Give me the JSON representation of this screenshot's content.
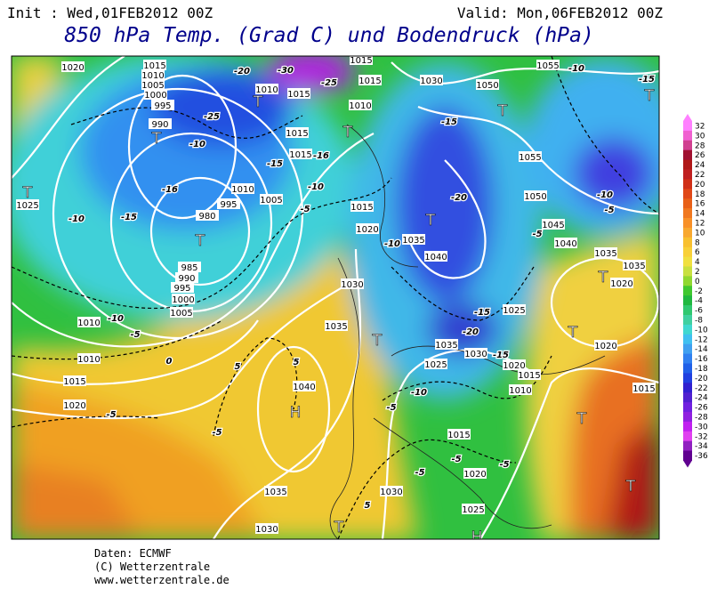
{
  "header": {
    "init": "Init : Wed,01FEB2012 00Z",
    "valid": "Valid: Mon,06FEB2012 00Z",
    "title": "850 hPa Temp. (Grad C) und Bodendruck (hPa)"
  },
  "colorbar": {
    "labels": [
      32,
      30,
      28,
      26,
      24,
      22,
      20,
      18,
      16,
      14,
      12,
      10,
      8,
      6,
      4,
      2,
      0,
      -2,
      -4,
      -6,
      -8,
      -10,
      -12,
      -14,
      -16,
      -18,
      -20,
      -22,
      -24,
      -26,
      -28,
      -30,
      -32,
      -34,
      -36
    ],
    "colors": [
      "#ff80ff",
      "#f060d0",
      "#d04090",
      "#a01030",
      "#b01818",
      "#c02020",
      "#d03018",
      "#e04818",
      "#e86018",
      "#f07820",
      "#f89028",
      "#f8a830",
      "#f8c030",
      "#f8d038",
      "#f0e040",
      "#c8e040",
      "#90d830",
      "#40c830",
      "#20b840",
      "#30c870",
      "#40d0a0",
      "#40d8d0",
      "#40c0f0",
      "#40a0f0",
      "#3080f0",
      "#2060e8",
      "#2040e0",
      "#3020d0",
      "#5020d0",
      "#7020e0",
      "#9020e0",
      "#c020f0",
      "#e040f0",
      "#9020c0",
      "#600090"
    ]
  },
  "map": {
    "isobar_labels": [
      "1020",
      "1015",
      "1010",
      "1005",
      "1000",
      "995",
      "990",
      "1010",
      "1015",
      "1015",
      "1015",
      "1010",
      "1015",
      "1015",
      "1005",
      "1010",
      "995",
      "980",
      "985",
      "990",
      "995",
      "1000",
      "1005",
      "1010",
      "1010",
      "1015",
      "1020",
      "1025",
      "1020",
      "1015",
      "1030",
      "1035",
      "1040",
      "1035",
      "1030",
      "1030",
      "1025",
      "1020",
      "1015",
      "1025",
      "1035",
      "1030",
      "1020",
      "1015",
      "1010",
      "1025",
      "1040",
      "1035",
      "1030",
      "1050",
      "1055",
      "1055",
      "1050",
      "1045",
      "1040",
      "1035",
      "1035",
      "1020",
      "1020",
      "1015"
    ],
    "temperature_labels": [
      "-30",
      "-25",
      "-25",
      "-20",
      "-10",
      "-15",
      "-16",
      "-16",
      "-15",
      "-10",
      "-10",
      "-5",
      "-10",
      "-5",
      "0",
      "-5",
      "5",
      "5",
      "-5",
      "-10",
      "-15",
      "-20",
      "-10",
      "-15",
      "-10",
      "-5",
      "-5",
      "-10",
      "-15",
      "-20",
      "-15",
      "-5",
      "-5",
      "-5",
      "-5",
      "5"
    ],
    "centers": [
      "T",
      "T",
      "T",
      "T",
      "T",
      "H",
      "T",
      "T",
      "T",
      "T",
      "T",
      "T",
      "T",
      "T",
      "T",
      "H"
    ]
  },
  "footer": {
    "lines": [
      "Daten: ECMWF",
      "(C) Wetterzentrale",
      "www.wetterzentrale.de"
    ]
  }
}
